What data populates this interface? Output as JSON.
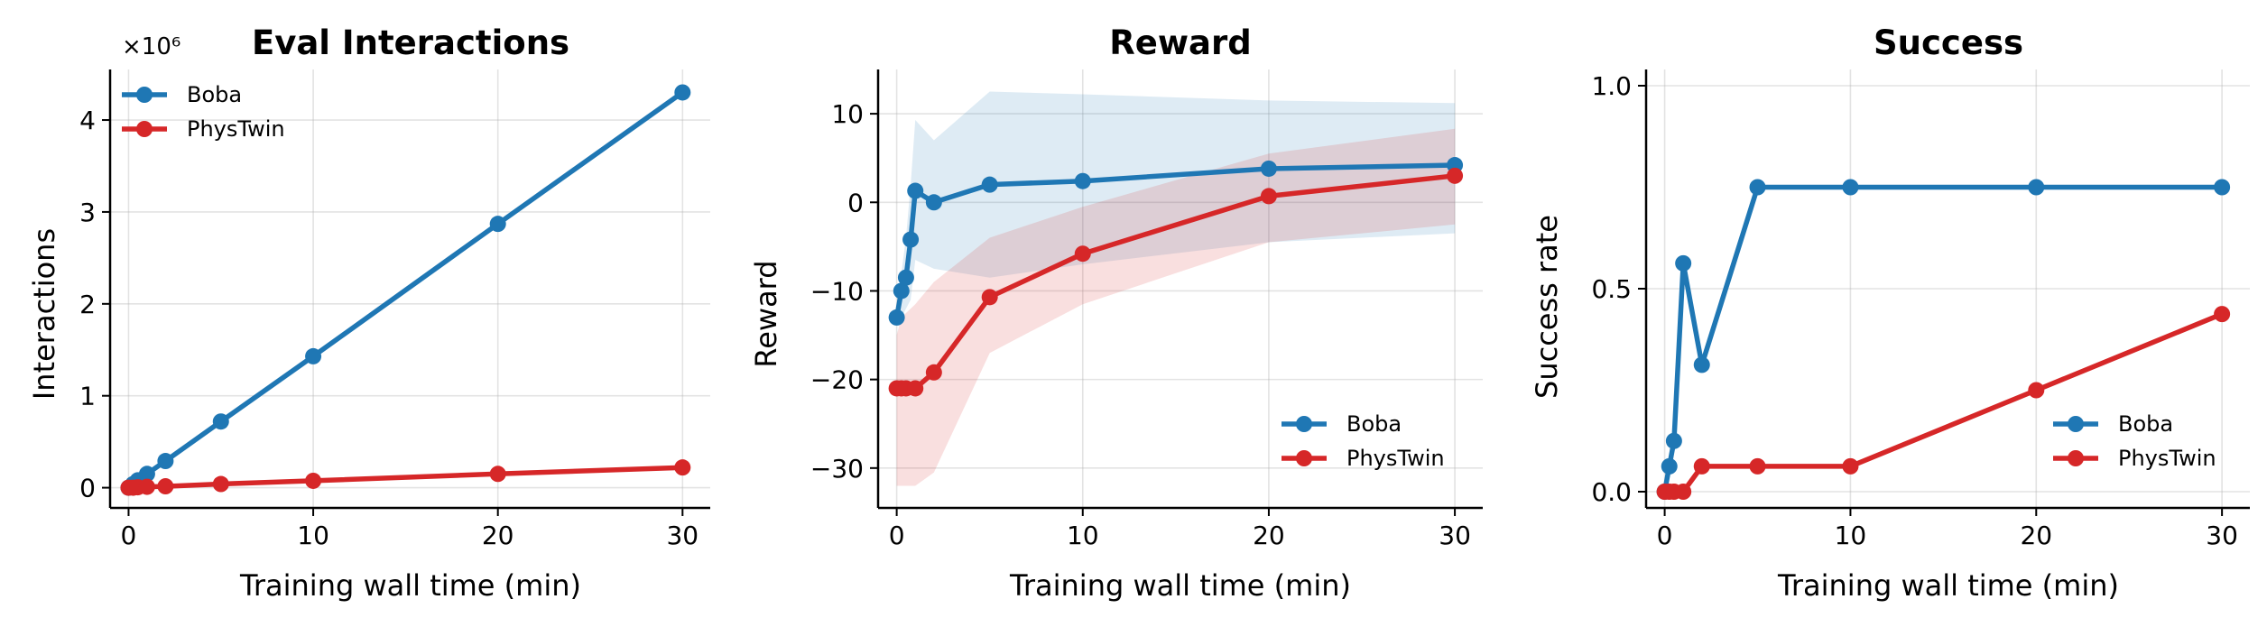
{
  "chart_data": [
    {
      "type": "line",
      "title": "Eval Interactions",
      "xlabel": "Training wall time (min)",
      "ylabel": "Interactions",
      "y_offset_label": "×10⁶",
      "xlim": [
        -1,
        31.5
      ],
      "ylim": [
        -0.22,
        4.55
      ],
      "xticks": [
        0,
        10,
        20,
        30
      ],
      "xtick_labels": [
        "0",
        "10",
        "20",
        "30"
      ],
      "yticks": [
        0,
        1,
        2,
        3,
        4
      ],
      "ytick_labels": [
        "0",
        "1",
        "2",
        "3",
        "4"
      ],
      "grid": true,
      "legend_position": "upper left",
      "series": [
        {
          "name": "Boba",
          "color": "#1f77b4",
          "x": [
            0,
            0.25,
            0.5,
            1,
            2,
            5,
            10,
            20,
            30
          ],
          "y": [
            0.0,
            0.04,
            0.08,
            0.15,
            0.29,
            0.72,
            1.43,
            2.87,
            4.3
          ]
        },
        {
          "name": "PhysTwin",
          "color": "#d62728",
          "x": [
            0,
            0.25,
            0.5,
            1,
            2,
            5,
            10,
            20,
            30
          ],
          "y": [
            0.0,
            0.0,
            0.005,
            0.01,
            0.015,
            0.04,
            0.075,
            0.15,
            0.22
          ]
        }
      ]
    },
    {
      "type": "line",
      "title": "Reward",
      "xlabel": "Training wall time (min)",
      "ylabel": "Reward",
      "xlim": [
        -1,
        31.5
      ],
      "ylim": [
        -34.5,
        15
      ],
      "xticks": [
        0,
        10,
        20,
        30
      ],
      "xtick_labels": [
        "0",
        "10",
        "20",
        "30"
      ],
      "yticks": [
        -30,
        -20,
        -10,
        0,
        10
      ],
      "ytick_labels": [
        "−30",
        "−20",
        "−10",
        "0",
        "10"
      ],
      "grid": true,
      "legend_position": "lower right",
      "series": [
        {
          "name": "Boba",
          "color": "#1f77b4",
          "x": [
            0,
            0.25,
            0.5,
            0.75,
            1,
            2,
            5,
            10,
            20,
            30
          ],
          "y": [
            -13,
            -10,
            -8.5,
            -4.2,
            1.3,
            0,
            2,
            2.4,
            3.8,
            4.2
          ],
          "band_low": [
            -13,
            -13,
            -12,
            -11,
            -6.5,
            -7.5,
            -8.5,
            -7,
            -4.5,
            -3.5
          ],
          "band_high": [
            -13,
            -8,
            -4,
            2,
            9.3,
            7,
            12.5,
            12.2,
            11.5,
            11.2
          ]
        },
        {
          "name": "PhysTwin",
          "color": "#d62728",
          "x": [
            0,
            0.25,
            0.5,
            1,
            2,
            5,
            10,
            20,
            30
          ],
          "y": [
            -21,
            -21,
            -21,
            -21,
            -19.2,
            -10.7,
            -5.8,
            0.7,
            3
          ],
          "band_low": [
            -32,
            -32,
            -32,
            -32,
            -30.5,
            -17,
            -11.5,
            -4.5,
            -2.5
          ],
          "band_high": [
            -15,
            -13,
            -12.5,
            -11.5,
            -9,
            -4,
            -0.5,
            5.5,
            8.3
          ]
        }
      ]
    },
    {
      "type": "line",
      "title": "Success",
      "xlabel": "Training wall time (min)",
      "ylabel": "Success rate",
      "xlim": [
        -1,
        31.5
      ],
      "ylim": [
        -0.04,
        1.04
      ],
      "xticks": [
        0,
        10,
        20,
        30
      ],
      "xtick_labels": [
        "0",
        "10",
        "20",
        "30"
      ],
      "yticks": [
        0,
        0.5,
        1.0
      ],
      "ytick_labels": [
        "0.0",
        "0.5",
        "1.0"
      ],
      "grid": true,
      "legend_position": "lower right",
      "series": [
        {
          "name": "Boba",
          "color": "#1f77b4",
          "x": [
            0,
            0.25,
            0.5,
            1,
            2,
            5,
            10,
            20,
            30
          ],
          "y": [
            0,
            0.0625,
            0.125,
            0.5625,
            0.3125,
            0.75,
            0.75,
            0.75,
            0.75
          ]
        },
        {
          "name": "PhysTwin",
          "color": "#d62728",
          "x": [
            0,
            0.25,
            0.5,
            1,
            2,
            5,
            10,
            20,
            30
          ],
          "y": [
            0,
            0,
            0,
            0,
            0.0625,
            0.0625,
            0.0625,
            0.25,
            0.4375
          ]
        }
      ]
    }
  ]
}
